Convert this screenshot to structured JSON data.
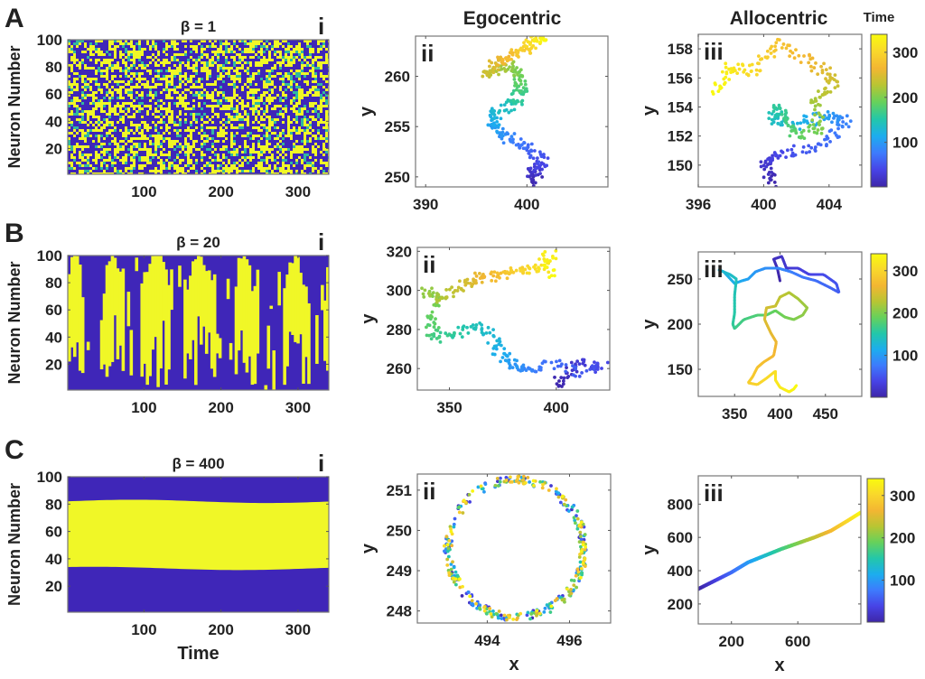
{
  "figure": {
    "column_titles": [
      "Egocentric",
      "Allocentric"
    ],
    "colorbar_title": "Time",
    "colormap": [
      "#3e26a8",
      "#4743e6",
      "#3d7bfd",
      "#1cadee",
      "#23c7a9",
      "#66d15b",
      "#b8c533",
      "#f3b632",
      "#f9d82b",
      "#f9fb0e"
    ],
    "on_color": "#f0f727",
    "off_color": "#3f26b8"
  },
  "chart_data": [
    {
      "panel": "A",
      "sub": "i",
      "type": "heatmap",
      "title": "β = 1",
      "beta": 1,
      "ylabel": "Neuron Number",
      "xlabel": "",
      "xlim": [
        1,
        340
      ],
      "ylim": [
        1,
        100
      ],
      "xticks": [
        100,
        200,
        300
      ],
      "yticks": [
        20,
        40,
        60,
        80,
        100
      ],
      "pattern": "random"
    },
    {
      "panel": "A",
      "sub": "ii",
      "type": "scatter",
      "column": "Egocentric",
      "xlabel": "",
      "ylabel": "y",
      "xlim": [
        389,
        408
      ],
      "ylim": [
        249,
        264
      ],
      "xticks": [
        390,
        400
      ],
      "yticks": [
        250,
        255,
        260
      ],
      "path": [
        [
          401,
          249.3
        ],
        [
          400.5,
          250.5
        ],
        [
          401.5,
          251.5
        ],
        [
          400,
          253
        ],
        [
          398,
          254
        ],
        [
          396.5,
          255
        ],
        [
          397,
          256.5
        ],
        [
          398.8,
          257.3
        ],
        [
          399.5,
          258.5
        ],
        [
          399.2,
          260
        ],
        [
          398,
          261
        ],
        [
          396,
          260
        ],
        [
          397,
          261.5
        ],
        [
          399,
          262
        ],
        [
          400,
          263
        ],
        [
          401,
          263.8
        ],
        [
          402,
          264
        ]
      ]
    },
    {
      "panel": "A",
      "sub": "iii",
      "type": "scatter",
      "column": "Allocentric",
      "xlabel": "",
      "ylabel": "y",
      "xlim": [
        396,
        406
      ],
      "ylim": [
        148.5,
        159
      ],
      "xticks": [
        396,
        400,
        404
      ],
      "yticks": [
        150,
        152,
        154,
        156,
        158
      ],
      "path": [
        [
          400.5,
          148.7
        ],
        [
          400,
          150
        ],
        [
          401,
          150.8
        ],
        [
          403.5,
          151.2
        ],
        [
          405,
          153
        ],
        [
          404,
          153.5
        ],
        [
          402,
          152.8
        ],
        [
          400.5,
          153.2
        ],
        [
          401,
          154
        ],
        [
          402,
          152
        ],
        [
          403.5,
          152.5
        ],
        [
          403,
          154.5
        ],
        [
          404.5,
          155.8
        ],
        [
          403,
          157
        ],
        [
          401,
          158.5
        ],
        [
          399.5,
          156.5
        ],
        [
          398,
          156.8
        ],
        [
          397,
          155
        ]
      ]
    },
    {
      "panel": "B",
      "sub": "i",
      "type": "heatmap",
      "title": "β = 20",
      "beta": 20,
      "ylabel": "Neuron Number",
      "xlabel": "",
      "xlim": [
        1,
        340
      ],
      "ylim": [
        1,
        100
      ],
      "xticks": [
        100,
        200,
        300
      ],
      "yticks": [
        20,
        40,
        60,
        80,
        100
      ],
      "pattern": "stripes"
    },
    {
      "panel": "B",
      "sub": "ii",
      "type": "scatter",
      "column": "Egocentric",
      "xlabel": "",
      "ylabel": "y",
      "xlim": [
        335,
        425
      ],
      "ylim": [
        249,
        322
      ],
      "xticks": [
        350,
        400
      ],
      "yticks": [
        260,
        280,
        300,
        320
      ],
      "path": [
        [
          400,
          250
        ],
        [
          404,
          258
        ],
        [
          412,
          263
        ],
        [
          422,
          261
        ],
        [
          412,
          258
        ],
        [
          398,
          262
        ],
        [
          388,
          260
        ],
        [
          382,
          260
        ],
        [
          378,
          265
        ],
        [
          373,
          270
        ],
        [
          368,
          280
        ],
        [
          360,
          281
        ],
        [
          352,
          276
        ],
        [
          343,
          276
        ],
        [
          342,
          284
        ],
        [
          346,
          294
        ],
        [
          340,
          300
        ],
        [
          346,
          296
        ],
        [
          356,
          301
        ],
        [
          360,
          305
        ],
        [
          365,
          307
        ],
        [
          373,
          307
        ],
        [
          380,
          309
        ],
        [
          386,
          310
        ],
        [
          394,
          312
        ],
        [
          397,
          319
        ],
        [
          396,
          307
        ]
      ]
    },
    {
      "panel": "B",
      "sub": "iii",
      "type": "line",
      "column": "Allocentric",
      "xlabel": "",
      "ylabel": "y",
      "xlim": [
        310,
        490
      ],
      "ylim": [
        120,
        280
      ],
      "xticks": [
        350,
        400,
        450
      ],
      "yticks": [
        150,
        200,
        250
      ],
      "path": [
        [
          400,
          248
        ],
        [
          397,
          262
        ],
        [
          393,
          272
        ],
        [
          402,
          275
        ],
        [
          407,
          262
        ],
        [
          420,
          262
        ],
        [
          432,
          255
        ],
        [
          448,
          255
        ],
        [
          462,
          245
        ],
        [
          465,
          235
        ],
        [
          456,
          240
        ],
        [
          440,
          248
        ],
        [
          425,
          252
        ],
        [
          412,
          258
        ],
        [
          398,
          262
        ],
        [
          384,
          262
        ],
        [
          373,
          258
        ],
        [
          365,
          250
        ],
        [
          358,
          248
        ],
        [
          350,
          245
        ],
        [
          338,
          258
        ],
        [
          333,
          260
        ],
        [
          345,
          255
        ],
        [
          352,
          250
        ],
        [
          350,
          232
        ],
        [
          350,
          212
        ],
        [
          348,
          200
        ],
        [
          350,
          195
        ],
        [
          360,
          205
        ],
        [
          375,
          210
        ],
        [
          385,
          210
        ],
        [
          395,
          215
        ],
        [
          405,
          208
        ],
        [
          415,
          205
        ],
        [
          425,
          210
        ],
        [
          430,
          218
        ],
        [
          420,
          228
        ],
        [
          410,
          235
        ],
        [
          400,
          230
        ],
        [
          395,
          220
        ],
        [
          385,
          218
        ],
        [
          383,
          205
        ],
        [
          390,
          190
        ],
        [
          396,
          180
        ],
        [
          393,
          165
        ],
        [
          382,
          158
        ],
        [
          375,
          152
        ],
        [
          370,
          142
        ],
        [
          365,
          135
        ],
        [
          375,
          133
        ],
        [
          385,
          140
        ],
        [
          395,
          148
        ],
        [
          395,
          138
        ],
        [
          400,
          130
        ],
        [
          410,
          125
        ],
        [
          415,
          128
        ],
        [
          418,
          132
        ]
      ]
    },
    {
      "panel": "C",
      "sub": "i",
      "type": "heatmap",
      "title": "β = 400",
      "beta": 400,
      "ylabel": "Neuron Number",
      "xlabel": "Time",
      "xlim": [
        1,
        340
      ],
      "ylim": [
        1,
        100
      ],
      "xticks": [
        100,
        200,
        300
      ],
      "yticks": [
        20,
        40,
        60,
        80,
        100
      ],
      "pattern": "band",
      "band_low": 33,
      "band_high": 82
    },
    {
      "panel": "C",
      "sub": "ii",
      "type": "scatter",
      "column": "Egocentric",
      "xlabel": "x",
      "ylabel": "y",
      "xlim": [
        492.3,
        497
      ],
      "ylim": [
        247.7,
        251.4
      ],
      "xticks": [
        494,
        496
      ],
      "yticks": [
        248,
        249,
        250,
        251
      ],
      "circle": {
        "cx": 494.7,
        "cy": 249.55,
        "rx": 1.65,
        "ry": 1.7
      }
    },
    {
      "panel": "C",
      "sub": "iii",
      "type": "line",
      "column": "Allocentric",
      "xlabel": "x",
      "ylabel": "y",
      "xlim": [
        0,
        980
      ],
      "ylim": [
        80,
        970
      ],
      "xticks": [
        200,
        600
      ],
      "yticks": [
        200,
        400,
        600,
        800
      ],
      "path": [
        [
          980,
          750
        ],
        [
          900,
          700
        ],
        [
          800,
          640
        ],
        [
          700,
          600
        ],
        [
          600,
          565
        ],
        [
          500,
          530
        ],
        [
          400,
          490
        ],
        [
          300,
          450
        ],
        [
          200,
          390
        ],
        [
          100,
          340
        ],
        [
          0,
          290
        ]
      ]
    }
  ],
  "colorbar": {
    "ticks": [
      100,
      200,
      300
    ],
    "range": [
      1,
      340
    ]
  }
}
